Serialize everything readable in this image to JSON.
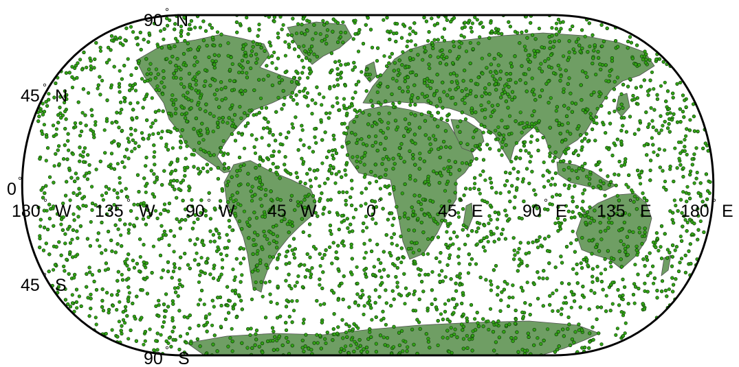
{
  "map": {
    "projection": "Robinson",
    "land_color": "#6f9e64",
    "land_edge_color": "#4f4f4f",
    "point_fill_color": "#34a317",
    "point_edge_color": "#0a3a05",
    "frame_color": "#000000",
    "latitude_labels": [
      {
        "id": "lat-90n",
        "text": "90",
        "deg": "°",
        "hemi": "N"
      },
      {
        "id": "lat-45n",
        "text": "45",
        "deg": "°",
        "hemi": "N"
      },
      {
        "id": "lat-0",
        "text": "0",
        "deg": "°",
        "hemi": ""
      },
      {
        "id": "lat-45s",
        "text": "45",
        "deg": "°",
        "hemi": "S"
      },
      {
        "id": "lat-90s",
        "text": "90",
        "deg": "°",
        "hemi": "S"
      }
    ],
    "longitude_labels": [
      {
        "id": "lon-180w",
        "text": "180",
        "deg": "°",
        "hemi": "W"
      },
      {
        "id": "lon-135w",
        "text": "135",
        "deg": "°",
        "hemi": "W"
      },
      {
        "id": "lon-90w",
        "text": "90",
        "deg": "°",
        "hemi": "W"
      },
      {
        "id": "lon-45w",
        "text": "45",
        "deg": "°",
        "hemi": "W"
      },
      {
        "id": "lon-0",
        "text": "0",
        "deg": "°",
        "hemi": ""
      },
      {
        "id": "lon-45e",
        "text": "45",
        "deg": "°",
        "hemi": "E"
      },
      {
        "id": "lon-90e",
        "text": "90",
        "deg": "°",
        "hemi": "E"
      },
      {
        "id": "lon-135e",
        "text": "135",
        "deg": "°",
        "hemi": "E"
      },
      {
        "id": "lon-180e",
        "text": "180",
        "deg": "°",
        "hemi": "E"
      }
    ],
    "point_density": {
      "ocean_relative": 1.0,
      "land_relative": 1.25
    }
  }
}
